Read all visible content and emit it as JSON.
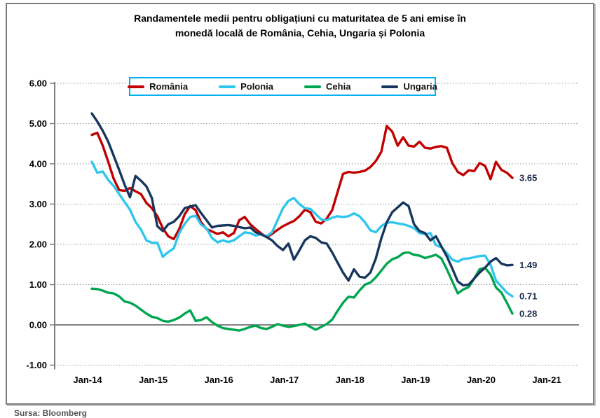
{
  "figure": {
    "title_line1": "Randamentele medii pentru obligațiuni cu maturitatea de 5 ani emise în",
    "title_line2": "monedă locală de România, Cehia, Ungaria și Polonia",
    "source_note": "Sursa: Bloomberg"
  },
  "chart_data": {
    "type": "line",
    "title": "Randamentele medii pentru obligațiuni cu maturitatea de 5 ani emise în monedă locală de România, Cehia, Ungaria și Polonia",
    "xlabel": "",
    "ylabel": "",
    "ylim": [
      -1.0,
      6.0
    ],
    "grid": "horizontal-dotted",
    "legend_position": "top-center",
    "y_ticks": [
      6.0,
      5.0,
      4.0,
      3.0,
      2.0,
      1.0,
      0.0,
      -1.0
    ],
    "y_tick_labels": [
      "6.00",
      "5.00",
      "4.00",
      "3.00",
      "2.00",
      "1.00",
      "0.00",
      "-1.00"
    ],
    "x_tick_labels": [
      "Jan-14",
      "Jan-15",
      "Jan-16",
      "Jan-17",
      "Jan-18",
      "Jan-19",
      "Jan-20",
      "Jan-21"
    ],
    "x_start_month": "Jan-2014",
    "x_end_month": "Jun-2020",
    "months_per_point": 1,
    "series": [
      {
        "name": "România",
        "color": "#C00000",
        "end_label": "3.65",
        "values": [
          4.72,
          4.77,
          4.45,
          4.05,
          3.63,
          3.35,
          3.33,
          3.4,
          3.32,
          3.25,
          3.03,
          2.9,
          2.7,
          2.4,
          2.2,
          2.13,
          2.38,
          2.75,
          2.95,
          2.85,
          2.55,
          2.38,
          2.32,
          2.26,
          2.3,
          2.2,
          2.28,
          2.6,
          2.68,
          2.5,
          2.38,
          2.27,
          2.18,
          2.26,
          2.36,
          2.45,
          2.52,
          2.58,
          2.7,
          2.86,
          2.8,
          2.56,
          2.52,
          2.64,
          2.85,
          3.3,
          3.75,
          3.8,
          3.78,
          3.8,
          3.83,
          3.92,
          4.07,
          4.3,
          4.94,
          4.8,
          4.45,
          4.66,
          4.45,
          4.43,
          4.55,
          4.4,
          4.38,
          4.42,
          4.44,
          4.4,
          4.02,
          3.8,
          3.72,
          3.84,
          3.82,
          4.02,
          3.95,
          3.62,
          4.05,
          3.85,
          3.78,
          3.65
        ]
      },
      {
        "name": "Polonia",
        "color": "#2FC6EE",
        "end_label": "0.71",
        "values": [
          4.05,
          3.78,
          3.81,
          3.6,
          3.45,
          3.25,
          3.05,
          2.86,
          2.56,
          2.37,
          2.1,
          2.04,
          2.04,
          1.69,
          1.81,
          1.9,
          2.28,
          2.51,
          2.68,
          2.71,
          2.49,
          2.4,
          2.16,
          2.05,
          2.1,
          2.06,
          2.1,
          2.2,
          2.3,
          2.28,
          2.22,
          2.25,
          2.2,
          2.3,
          2.6,
          2.9,
          3.08,
          3.15,
          3.0,
          2.9,
          2.88,
          2.75,
          2.62,
          2.6,
          2.66,
          2.7,
          2.68,
          2.7,
          2.77,
          2.7,
          2.55,
          2.35,
          2.3,
          2.45,
          2.54,
          2.55,
          2.52,
          2.5,
          2.46,
          2.4,
          2.28,
          2.25,
          2.28,
          1.98,
          1.93,
          1.78,
          1.62,
          1.57,
          1.64,
          1.65,
          1.68,
          1.71,
          1.72,
          1.5,
          1.1,
          0.95,
          0.8,
          0.71
        ]
      },
      {
        "name": "Cehia",
        "color": "#00A550",
        "end_label": "0.28",
        "values": [
          0.9,
          0.89,
          0.85,
          0.8,
          0.78,
          0.71,
          0.58,
          0.55,
          0.48,
          0.38,
          0.28,
          0.2,
          0.17,
          0.1,
          0.08,
          0.12,
          0.18,
          0.28,
          0.36,
          0.1,
          0.12,
          0.19,
          0.07,
          -0.02,
          -0.08,
          -0.1,
          -0.12,
          -0.14,
          -0.1,
          -0.05,
          -0.02,
          -0.08,
          -0.1,
          -0.05,
          0.02,
          -0.02,
          -0.05,
          -0.03,
          0.0,
          0.03,
          -0.05,
          -0.12,
          -0.05,
          0.02,
          0.13,
          0.35,
          0.55,
          0.7,
          0.68,
          0.85,
          1.0,
          1.05,
          1.18,
          1.35,
          1.52,
          1.63,
          1.68,
          1.78,
          1.8,
          1.74,
          1.72,
          1.66,
          1.7,
          1.74,
          1.65,
          1.38,
          1.08,
          0.78,
          0.88,
          0.94,
          1.15,
          1.38,
          1.42,
          1.25,
          0.93,
          0.8,
          0.55,
          0.28
        ]
      },
      {
        "name": "Ungaria",
        "color": "#17365D",
        "end_label": "1.49",
        "values": [
          5.25,
          5.05,
          4.82,
          4.55,
          4.2,
          3.85,
          3.48,
          3.17,
          3.7,
          3.58,
          3.44,
          3.15,
          2.45,
          2.33,
          2.5,
          2.56,
          2.7,
          2.9,
          2.94,
          2.97,
          2.78,
          2.6,
          2.42,
          2.46,
          2.47,
          2.48,
          2.46,
          2.43,
          2.4,
          2.42,
          2.3,
          2.25,
          2.18,
          2.1,
          1.96,
          1.86,
          2.02,
          1.62,
          1.85,
          2.1,
          2.2,
          2.16,
          2.05,
          2.02,
          1.8,
          1.55,
          1.3,
          1.1,
          1.38,
          1.2,
          1.17,
          1.3,
          1.65,
          2.15,
          2.55,
          2.8,
          2.92,
          3.04,
          2.95,
          2.5,
          2.33,
          2.28,
          2.1,
          2.2,
          1.95,
          1.7,
          1.4,
          1.08,
          0.98,
          1.0,
          1.15,
          1.3,
          1.42,
          1.57,
          1.66,
          1.52,
          1.48,
          1.49
        ]
      }
    ]
  }
}
